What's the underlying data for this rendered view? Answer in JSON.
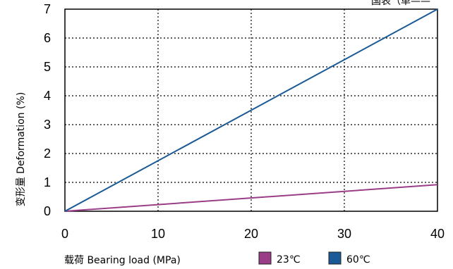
{
  "chart_data": {
    "type": "line",
    "top_note": "国表（单——",
    "xlabel": "载荷 Bearing load (MPa)",
    "ylabel": "变形量 Deformation (%)",
    "xlim": [
      0,
      40
    ],
    "ylim": [
      0,
      7
    ],
    "x_ticks": [
      "0",
      "10",
      "20",
      "30",
      "40"
    ],
    "y_ticks": [
      "0",
      "1",
      "2",
      "3",
      "4",
      "5",
      "6",
      "7"
    ],
    "grid": true,
    "legend_position": "bottom",
    "series": [
      {
        "name": "23℃",
        "color": "#9b3d86",
        "x": [
          0,
          40
        ],
        "y": [
          0,
          0.92
        ]
      },
      {
        "name": "60℃",
        "color": "#1a5a96",
        "x": [
          0,
          40
        ],
        "y": [
          0,
          7.0
        ]
      }
    ]
  }
}
